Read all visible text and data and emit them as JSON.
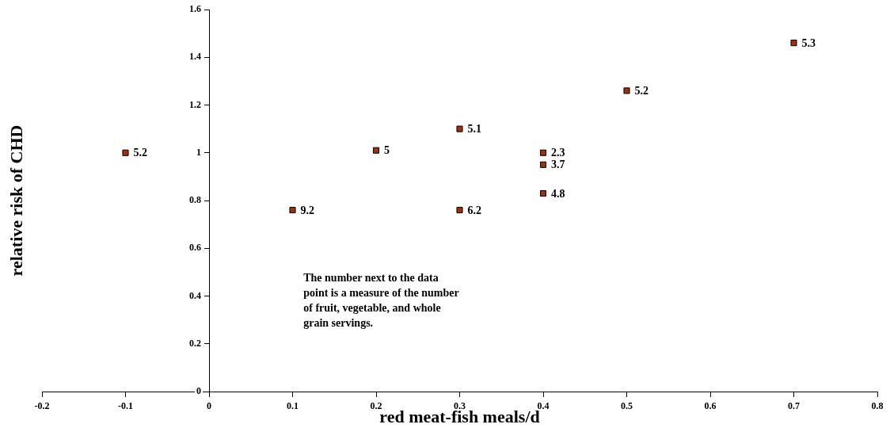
{
  "chart_data": {
    "type": "scatter",
    "xlabel": "red meat-fish meals/d",
    "ylabel": "relative risk of CHD",
    "x": [
      -0.1,
      0.1,
      0.2,
      0.3,
      0.3,
      0.4,
      0.4,
      0.4,
      0.5,
      0.7
    ],
    "series": [
      {
        "color": "#a0300c",
        "values": [
          1.0,
          0.76,
          1.01,
          1.1,
          0.76,
          1.0,
          0.95,
          0.83,
          1.26,
          1.46
        ]
      }
    ],
    "xlim": [
      -0.2,
      0.8
    ],
    "xticks": [
      -0.2,
      -0.1,
      0,
      0.1,
      0.2,
      0.3,
      0.4,
      0.5,
      0.6,
      0.7,
      0.8
    ],
    "ylim": [
      0,
      1.6
    ],
    "yticks": [
      0,
      0.2,
      0.4,
      0.6,
      0.8,
      1,
      1.2,
      1.4,
      1.6
    ],
    "marker": "square",
    "grid": false,
    "legend": false,
    "annotations": [
      {
        "text": "5.2",
        "x": -0.1,
        "y": 1.0
      },
      {
        "text": "9.2",
        "x": 0.1,
        "y": 0.76
      },
      {
        "text": "5",
        "x": 0.2,
        "y": 1.01
      },
      {
        "text": "5.1",
        "x": 0.3,
        "y": 1.1
      },
      {
        "text": "6.2",
        "x": 0.3,
        "y": 0.76
      },
      {
        "text": "2.3",
        "x": 0.4,
        "y": 1.0
      },
      {
        "text": "3.7",
        "x": 0.4,
        "y": 0.95
      },
      {
        "text": "4.8",
        "x": 0.4,
        "y": 0.83
      },
      {
        "text": "5.2",
        "x": 0.5,
        "y": 1.26
      },
      {
        "text": "5.3",
        "x": 0.7,
        "y": 1.46
      },
      "The number next to the data point is a measure of the number of fruit, vegetable, and whole grain servings."
    ]
  }
}
